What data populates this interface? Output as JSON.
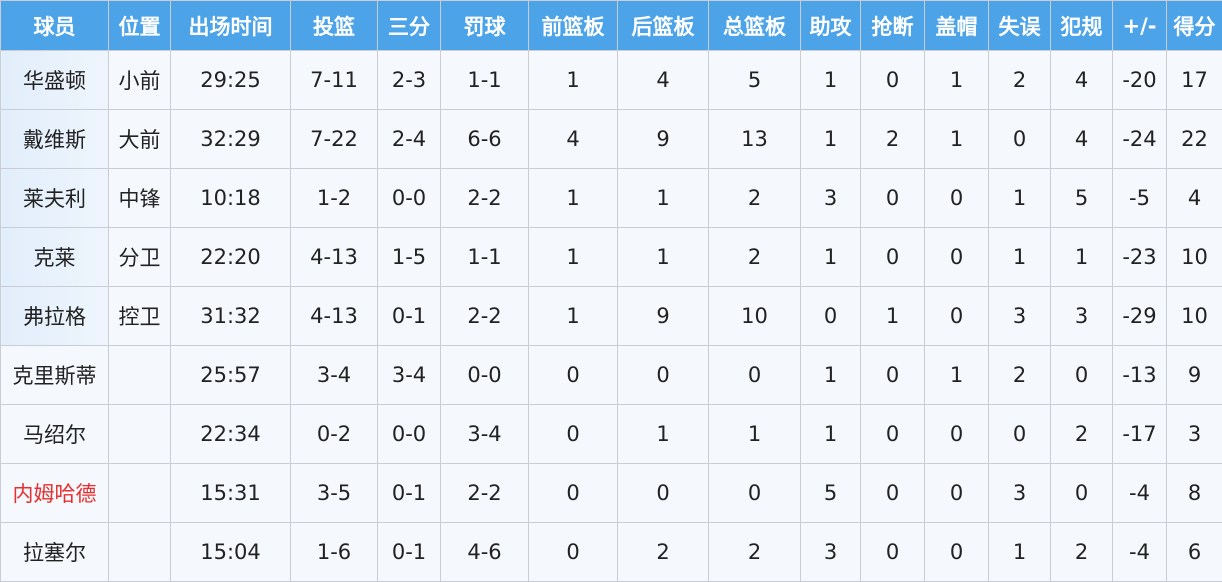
{
  "headers": [
    "球员",
    "位置",
    "出场时间",
    "投篮",
    "三分",
    "罚球",
    "前篮板",
    "后篮板",
    "总篮板",
    "助攻",
    "抢断",
    "盖帽",
    "失误",
    "犯规",
    "+/-",
    "得分"
  ],
  "colors": {
    "header_bg": "#4da3e8",
    "highlight_name": "#e63030",
    "starter_name_bg": "#e2eefb"
  },
  "rows": [
    {
      "starter": true,
      "highlight": false,
      "cells": [
        "华盛顿",
        "小前",
        "29:25",
        "7-11",
        "2-3",
        "1-1",
        "1",
        "4",
        "5",
        "1",
        "0",
        "1",
        "2",
        "4",
        "-20",
        "17"
      ]
    },
    {
      "starter": true,
      "highlight": false,
      "cells": [
        "戴维斯",
        "大前",
        "32:29",
        "7-22",
        "2-4",
        "6-6",
        "4",
        "9",
        "13",
        "1",
        "2",
        "1",
        "0",
        "4",
        "-24",
        "22"
      ]
    },
    {
      "starter": true,
      "highlight": false,
      "cells": [
        "莱夫利",
        "中锋",
        "10:18",
        "1-2",
        "0-0",
        "2-2",
        "1",
        "1",
        "2",
        "3",
        "0",
        "0",
        "1",
        "5",
        "-5",
        "4"
      ]
    },
    {
      "starter": true,
      "highlight": false,
      "cells": [
        "克莱",
        "分卫",
        "22:20",
        "4-13",
        "1-5",
        "1-1",
        "1",
        "1",
        "2",
        "1",
        "0",
        "0",
        "1",
        "1",
        "-23",
        "10"
      ]
    },
    {
      "starter": true,
      "highlight": false,
      "cells": [
        "弗拉格",
        "控卫",
        "31:32",
        "4-13",
        "0-1",
        "2-2",
        "1",
        "9",
        "10",
        "0",
        "1",
        "0",
        "3",
        "3",
        "-29",
        "10"
      ]
    },
    {
      "starter": false,
      "highlight": false,
      "cells": [
        "克里斯蒂",
        "",
        "25:57",
        "3-4",
        "3-4",
        "0-0",
        "0",
        "0",
        "0",
        "1",
        "0",
        "1",
        "2",
        "0",
        "-13",
        "9"
      ]
    },
    {
      "starter": false,
      "highlight": false,
      "cells": [
        "马绍尔",
        "",
        "22:34",
        "0-2",
        "0-0",
        "3-4",
        "0",
        "1",
        "1",
        "1",
        "0",
        "0",
        "0",
        "2",
        "-17",
        "3"
      ]
    },
    {
      "starter": false,
      "highlight": true,
      "cells": [
        "内姆哈德",
        "",
        "15:31",
        "3-5",
        "0-1",
        "2-2",
        "0",
        "0",
        "0",
        "5",
        "0",
        "0",
        "3",
        "0",
        "-4",
        "8"
      ]
    },
    {
      "starter": false,
      "highlight": false,
      "cells": [
        "拉塞尔",
        "",
        "15:04",
        "1-6",
        "0-1",
        "4-6",
        "0",
        "2",
        "2",
        "3",
        "0",
        "0",
        "1",
        "2",
        "-4",
        "6"
      ]
    }
  ]
}
